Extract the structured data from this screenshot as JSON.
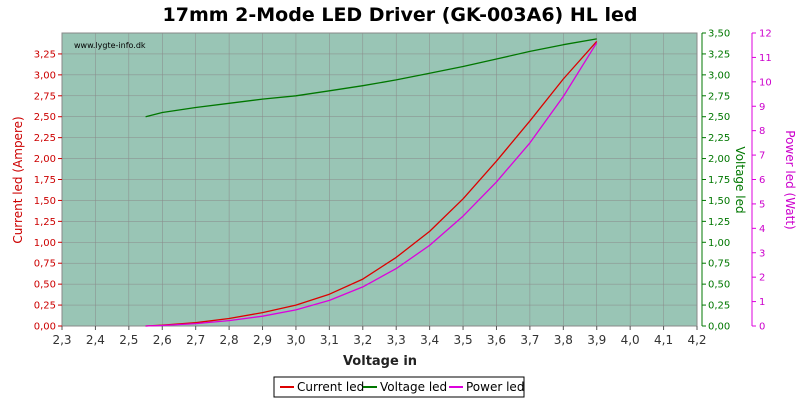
{
  "chart_data": {
    "type": "line",
    "title": "17mm 2-Mode LED Driver (GK-003A6) HL led",
    "watermark": "www.lygte-info.dk",
    "xlabel": "Voltage in",
    "ylabel_left": "Current led (Ampere)",
    "ylabel_right1": "Voltage led",
    "ylabel_right2": "Power led (Watt)",
    "xlim": [
      2.3,
      4.2
    ],
    "ylim_left": [
      0,
      3.5
    ],
    "ylim_right1": [
      0,
      3.5
    ],
    "ylim_right2": [
      0,
      12
    ],
    "x_ticks": [
      "2,3",
      "2,4",
      "2,5",
      "2,6",
      "2,7",
      "2,8",
      "2,9",
      "3,0",
      "3,1",
      "3,2",
      "3,3",
      "3,4",
      "3,5",
      "3,6",
      "3,7",
      "3,8",
      "3,9",
      "4,0",
      "4,1",
      "4,2"
    ],
    "y_left_ticks": [
      "0,00",
      "0,25",
      "0,50",
      "0,75",
      "1,00",
      "1,25",
      "1,50",
      "1,75",
      "2,00",
      "2,25",
      "2,50",
      "2,75",
      "3,00",
      "3,25"
    ],
    "y_right1_ticks": [
      "0,00",
      "0,25",
      "0,50",
      "0,75",
      "1,00",
      "1,25",
      "1,50",
      "1,75",
      "2,00",
      "2,25",
      "2,50",
      "2,75",
      "3,00",
      "3,25",
      "3,50"
    ],
    "y_right2_ticks": [
      "0",
      "1",
      "2",
      "3",
      "4",
      "5",
      "6",
      "7",
      "8",
      "9",
      "10",
      "11",
      "12"
    ],
    "grid": true,
    "legend_position": "bottom-center",
    "series": [
      {
        "name": "Current led",
        "axis": "left",
        "color": "#dd0000",
        "x": [
          2.55,
          2.6,
          2.7,
          2.8,
          2.9,
          3.0,
          3.1,
          3.2,
          3.3,
          3.4,
          3.5,
          3.6,
          3.7,
          3.8,
          3.9
        ],
        "y": [
          0.0,
          0.01,
          0.04,
          0.09,
          0.16,
          0.25,
          0.38,
          0.56,
          0.82,
          1.13,
          1.52,
          1.97,
          2.45,
          2.95,
          3.4
        ]
      },
      {
        "name": "Voltage led",
        "axis": "right1",
        "color": "#007700",
        "x": [
          2.55,
          2.6,
          2.7,
          2.8,
          2.9,
          3.0,
          3.1,
          3.2,
          3.3,
          3.4,
          3.5,
          3.6,
          3.7,
          3.8,
          3.9
        ],
        "y": [
          2.5,
          2.55,
          2.61,
          2.66,
          2.71,
          2.75,
          2.81,
          2.87,
          2.94,
          3.02,
          3.1,
          3.19,
          3.28,
          3.36,
          3.43
        ]
      },
      {
        "name": "Power led",
        "axis": "right2",
        "color": "#dd00dd",
        "x": [
          2.55,
          2.6,
          2.7,
          2.8,
          2.9,
          3.0,
          3.1,
          3.2,
          3.3,
          3.4,
          3.5,
          3.6,
          3.7,
          3.8,
          3.9
        ],
        "y": [
          0.0,
          0.02,
          0.1,
          0.22,
          0.4,
          0.66,
          1.05,
          1.6,
          2.35,
          3.3,
          4.5,
          5.9,
          7.5,
          9.4,
          11.6
        ]
      }
    ]
  }
}
